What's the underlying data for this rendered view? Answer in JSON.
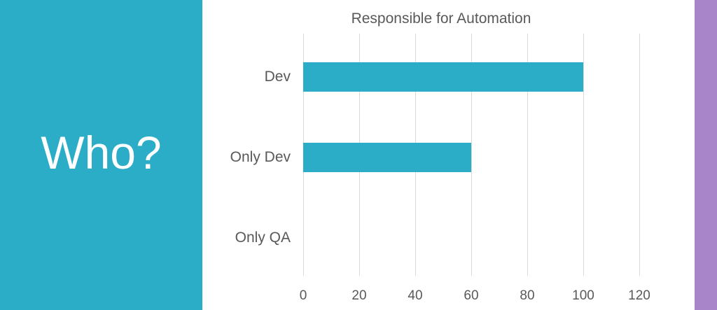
{
  "left_panel": {
    "title": "Who?",
    "bg_color": "#2BADC8",
    "text_color": "#FFFFFF"
  },
  "right_strip": {
    "color": "#A884C8"
  },
  "chart_data": {
    "type": "bar",
    "orientation": "horizontal",
    "title": "Responsible for Automation",
    "categories": [
      "Dev",
      "Only Dev",
      "Only QA"
    ],
    "values": [
      100,
      60,
      0
    ],
    "xlabel": "",
    "ylabel": "",
    "xlim": [
      0,
      120
    ],
    "xticks": [
      0,
      20,
      40,
      60,
      80,
      100,
      120
    ],
    "grid": true,
    "legend": "none",
    "bar_color": "#2BADC8",
    "text_color": "#595959",
    "gridline_color": "#D9D9D9"
  }
}
